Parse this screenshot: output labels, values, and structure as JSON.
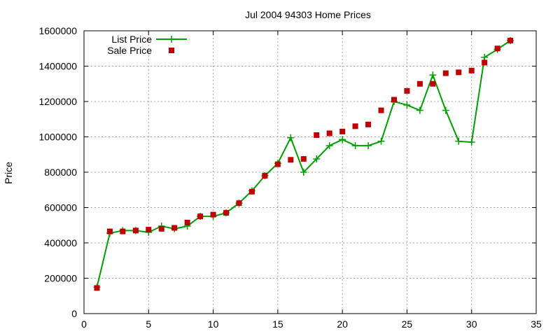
{
  "chart_data": {
    "type": "line",
    "title": "Jul 2004 94303 Home Prices",
    "xlabel": "",
    "ylabel": "Price",
    "xlim": [
      0,
      35
    ],
    "ylim": [
      0,
      1600000
    ],
    "xticks": [
      0,
      5,
      10,
      15,
      20,
      25,
      30,
      35
    ],
    "yticks": [
      0,
      200000,
      400000,
      600000,
      800000,
      1000000,
      1200000,
      1400000,
      1600000
    ],
    "grid": true,
    "legend_position": "top-left",
    "series": [
      {
        "name": "List Price",
        "style": "line-with-plus",
        "color": "#00a000",
        "x": [
          1,
          2,
          3,
          4,
          5,
          6,
          7,
          8,
          9,
          10,
          11,
          12,
          13,
          14,
          15,
          16,
          17,
          18,
          19,
          20,
          21,
          22,
          23,
          24,
          25,
          26,
          27,
          28,
          29,
          30,
          31,
          32,
          33
        ],
        "y": [
          150000,
          455000,
          470000,
          470000,
          460000,
          495000,
          480000,
          495000,
          550000,
          550000,
          570000,
          625000,
          695000,
          780000,
          850000,
          995000,
          800000,
          875000,
          950000,
          985000,
          950000,
          950000,
          975000,
          1200000,
          1180000,
          1150000,
          1350000,
          1150000,
          975000,
          970000,
          1450000,
          1495000,
          1545000
        ]
      },
      {
        "name": "Sale Price",
        "style": "points-square",
        "color": "#c00000",
        "x": [
          1,
          2,
          3,
          4,
          5,
          6,
          7,
          8,
          9,
          10,
          11,
          12,
          13,
          14,
          15,
          16,
          17,
          18,
          19,
          20,
          21,
          22,
          23,
          24,
          25,
          26,
          27,
          28,
          29,
          30,
          31,
          32,
          33
        ],
        "y": [
          145000,
          465000,
          465000,
          470000,
          475000,
          480000,
          485000,
          515000,
          550000,
          560000,
          570000,
          625000,
          690000,
          780000,
          845000,
          870000,
          875000,
          1010000,
          1020000,
          1030000,
          1060000,
          1070000,
          1150000,
          1210000,
          1260000,
          1300000,
          1300000,
          1360000,
          1365000,
          1375000,
          1420000,
          1500000,
          1545000
        ]
      }
    ]
  }
}
